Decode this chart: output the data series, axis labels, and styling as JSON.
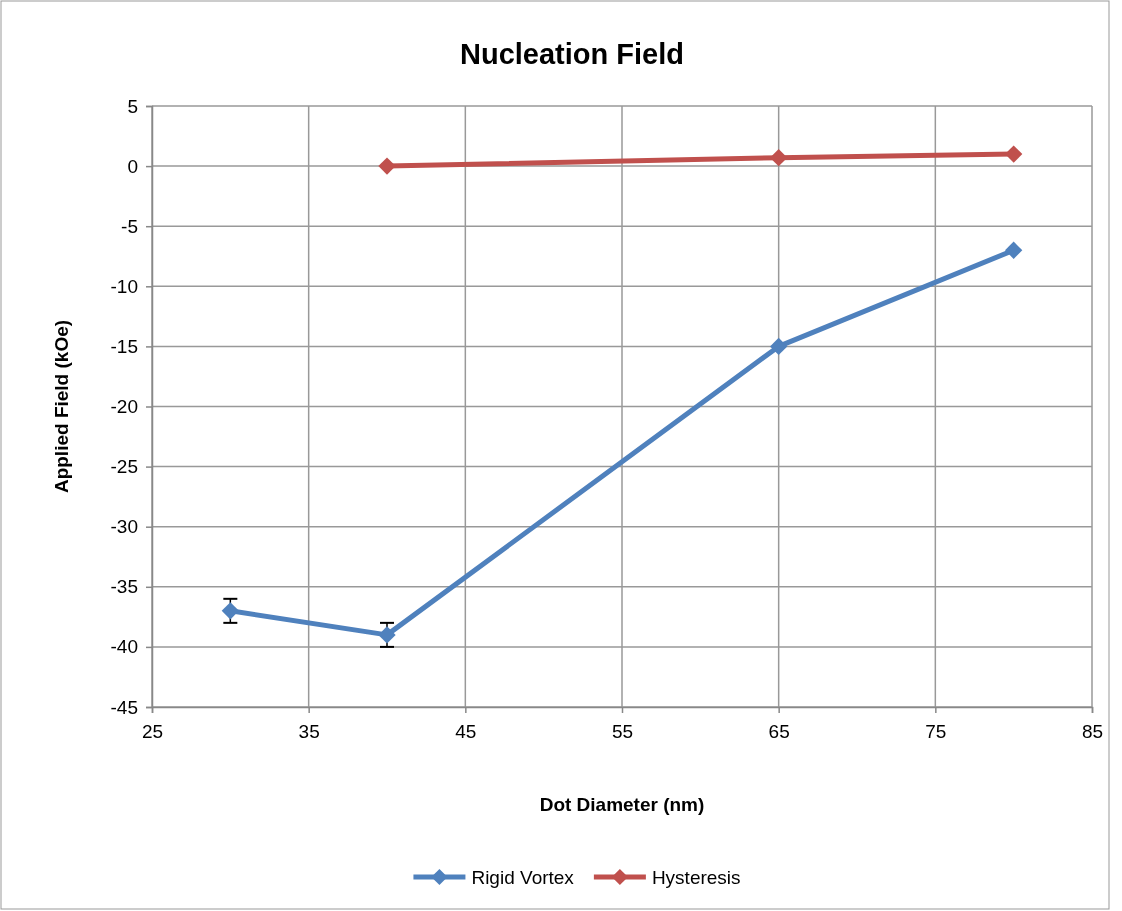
{
  "chart_data": {
    "type": "line",
    "title": "Nucleation Field",
    "xlabel": "Dot Diameter (nm)",
    "ylabel": "Applied Field (kOe)",
    "xlim": [
      25,
      85
    ],
    "xticks": [
      25,
      35,
      45,
      55,
      65,
      75,
      85
    ],
    "ylim": [
      -45,
      5
    ],
    "yticks": [
      -45,
      -40,
      -35,
      -30,
      -25,
      -20,
      -15,
      -10,
      -5,
      0,
      5
    ],
    "grid": true,
    "legend": "bottom",
    "marker": "diamond",
    "line_style": "solid",
    "series": [
      {
        "name": "Rigid Vortex",
        "color": "#4f81bd",
        "x": [
          30,
          40,
          65,
          80
        ],
        "values": [
          -37,
          -39,
          -15,
          -7
        ],
        "errors": [
          1,
          1,
          null,
          null
        ]
      },
      {
        "name": "Hysteresis",
        "color": "#c0504d",
        "x": [
          40,
          65,
          80
        ],
        "values": [
          0,
          0.7,
          1
        ]
      }
    ]
  }
}
